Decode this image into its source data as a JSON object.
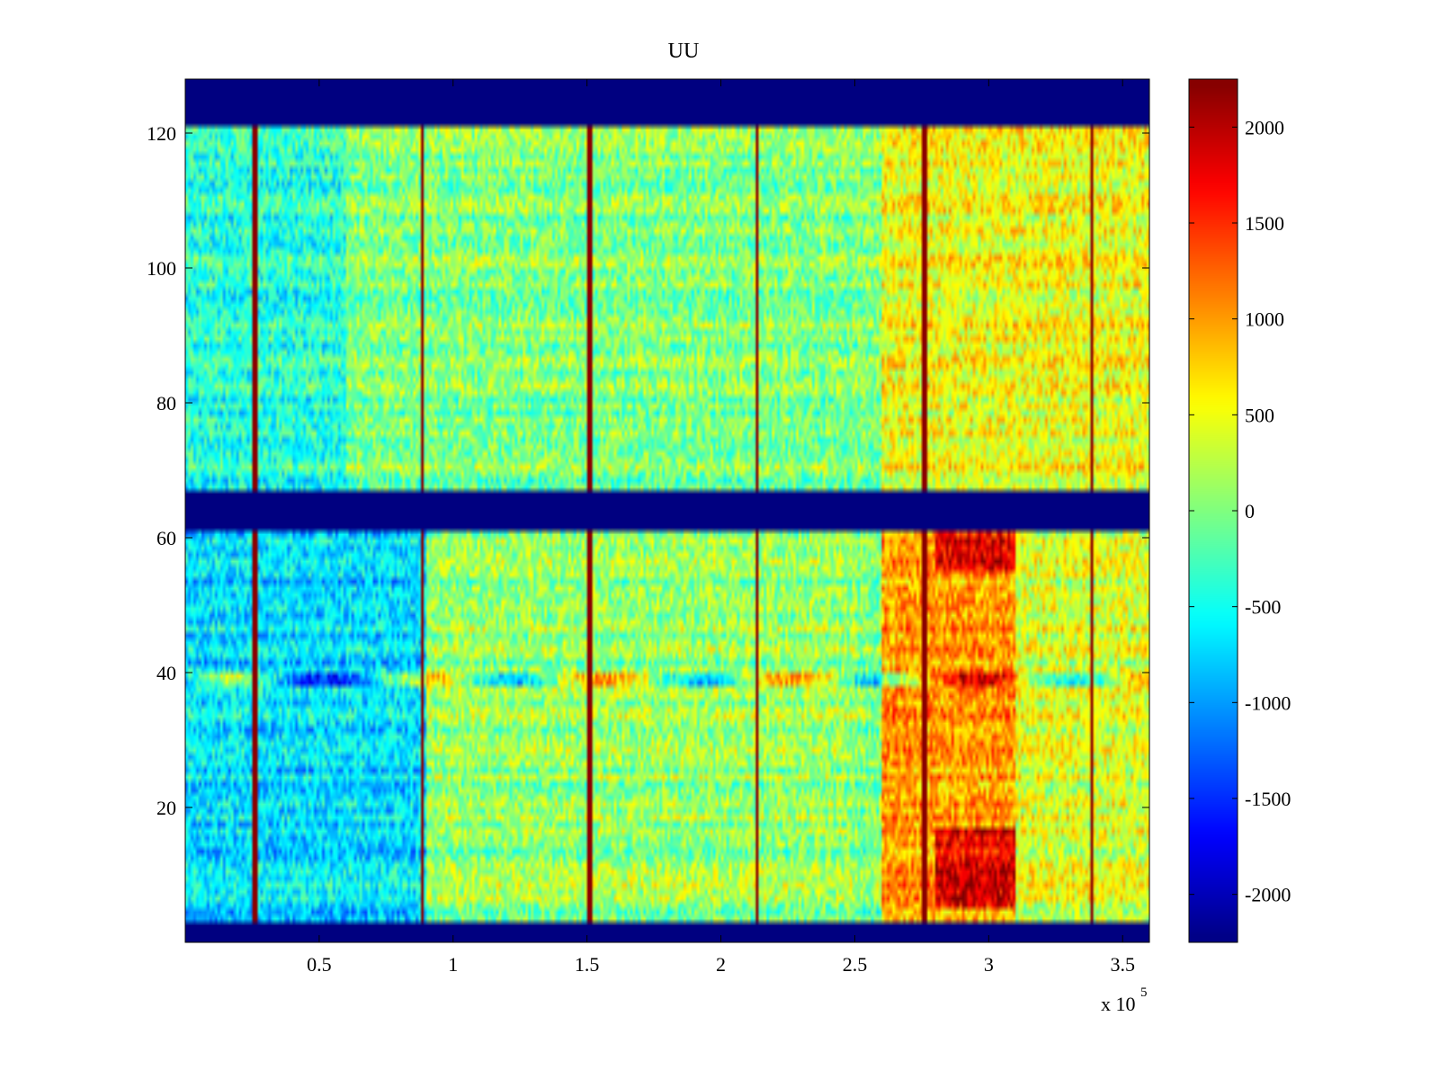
{
  "chart_data": {
    "type": "heatmap",
    "title": "UU",
    "xlabel": "",
    "ylabel": "",
    "x_exponent_label": "x 10",
    "x_exponent_power": "5",
    "x_range": [
      0,
      3.6
    ],
    "y_range": [
      0,
      128
    ],
    "x_ticks": [
      0.5,
      1,
      1.5,
      2,
      2.5,
      3,
      3.5
    ],
    "x_tick_labels": [
      "0.5",
      "1",
      "1.5",
      "2",
      "2.5",
      "3",
      "3.5"
    ],
    "y_ticks": [
      20,
      40,
      60,
      80,
      100,
      120
    ],
    "y_tick_labels": [
      "20",
      "40",
      "60",
      "80",
      "100",
      "120"
    ],
    "colormap": "jet",
    "color_range": [
      -2250,
      2250
    ],
    "colorbar_ticks": [
      2000,
      1500,
      1000,
      500,
      0,
      -500,
      -1000,
      -1500,
      -2000
    ],
    "colorbar_tick_labels": [
      "2000",
      "1500",
      "1000",
      "500",
      "0",
      "-500",
      "-1000",
      "-1500",
      "-2000"
    ],
    "colorbar_position": "right",
    "masked_value": -2250,
    "masked_row_bands": [
      [
        0,
        3
      ],
      [
        61,
        67
      ],
      [
        121,
        128
      ]
    ],
    "vertical_spikes_x": [
      0.26,
      0.885,
      1.51,
      2.135,
      2.76,
      3.385
    ],
    "spike_value": 2200,
    "regions": [
      {
        "x": [
          0.0,
          0.9
        ],
        "y": [
          3,
          61
        ],
        "value": -700
      },
      {
        "x": [
          0.0,
          0.6
        ],
        "y": [
          67,
          121
        ],
        "value": -400
      },
      {
        "x": [
          0.9,
          2.5
        ],
        "y": [
          3,
          61
        ],
        "value": 100
      },
      {
        "x": [
          0.6,
          2.5
        ],
        "y": [
          67,
          121
        ],
        "value": 0
      },
      {
        "x": [
          2.6,
          3.1
        ],
        "y": [
          3,
          61
        ],
        "value": 1000
      },
      {
        "x": [
          2.8,
          3.1
        ],
        "y": [
          5,
          17
        ],
        "value": 1800
      },
      {
        "x": [
          2.8,
          3.1
        ],
        "y": [
          55,
          61
        ],
        "value": 1700
      },
      {
        "x": [
          2.6,
          3.6
        ],
        "y": [
          67,
          121
        ],
        "value": 500
      },
      {
        "x": [
          3.1,
          3.6
        ],
        "y": [
          3,
          61
        ],
        "value": 400
      }
    ],
    "row_line_y": 39,
    "grid": false
  }
}
